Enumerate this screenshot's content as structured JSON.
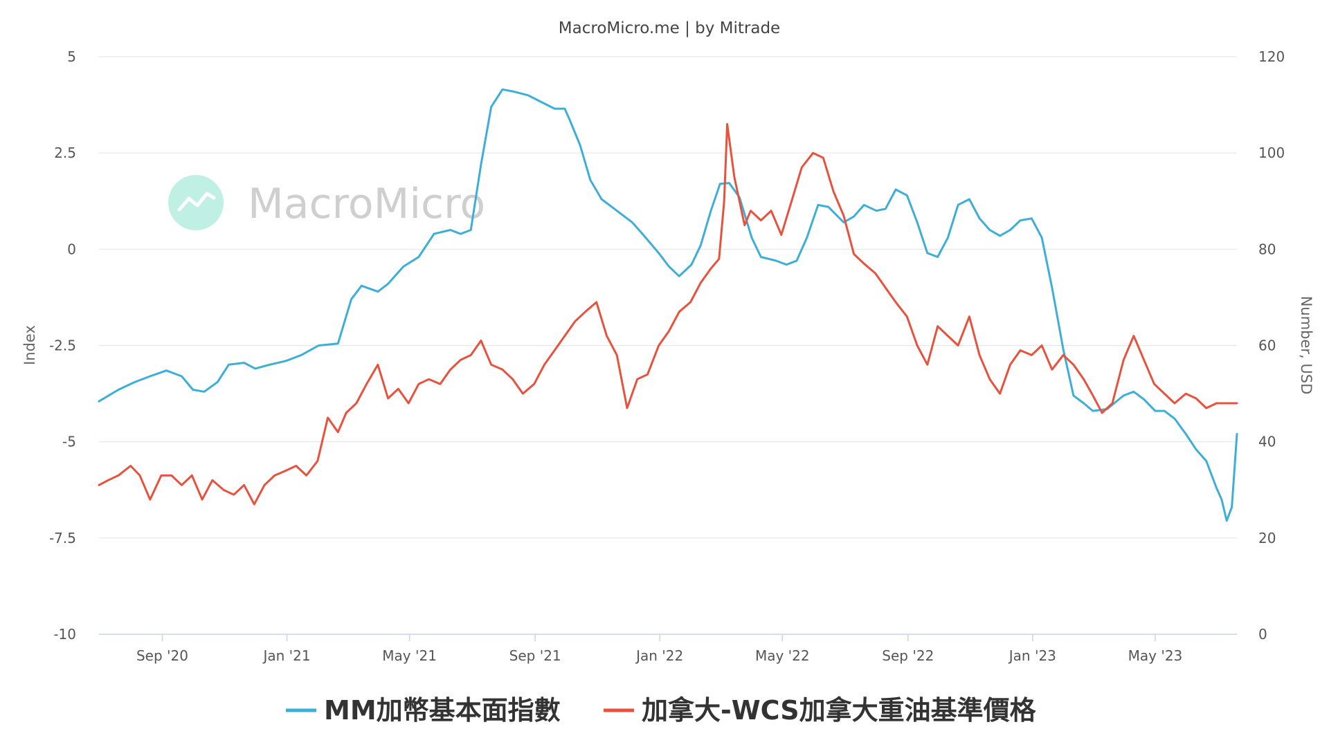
{
  "header": {
    "source": "MacroMicro.me | by Mitrade"
  },
  "watermark": {
    "text": "MacroMicro",
    "logo": "chart-trend-icon",
    "logo_color": "#bff0e3"
  },
  "colors": {
    "mm_index": "#3daed8",
    "wcs": "#e8513c",
    "grid": "#e6e6e6",
    "axis": "#c8d3e6"
  },
  "chart_data": {
    "type": "line",
    "title": "MacroMicro.me | by Mitrade",
    "x_range": [
      "2020-07-01",
      "2023-07-20"
    ],
    "x_ticks": [
      {
        "date": "2020-09-01",
        "label": "Sep '20"
      },
      {
        "date": "2021-01-01",
        "label": "Jan '21"
      },
      {
        "date": "2021-05-01",
        "label": "May '21"
      },
      {
        "date": "2021-09-01",
        "label": "Sep '21"
      },
      {
        "date": "2022-01-01",
        "label": "Jan '22"
      },
      {
        "date": "2022-05-01",
        "label": "May '22"
      },
      {
        "date": "2022-09-01",
        "label": "Sep '22"
      },
      {
        "date": "2023-01-01",
        "label": "Jan '23"
      },
      {
        "date": "2023-05-01",
        "label": "May '23"
      }
    ],
    "y_left": {
      "label": "Index",
      "range": [
        -10,
        5
      ],
      "ticks": [
        "5",
        "2.5",
        "0",
        "-2.5",
        "-5",
        "-7.5",
        "-10"
      ],
      "tick_values": [
        5,
        2.5,
        0,
        -2.5,
        -5,
        -7.5,
        -10
      ]
    },
    "y_right": {
      "label": "Number, USD",
      "range": [
        0,
        120
      ],
      "ticks": [
        "120",
        "100",
        "80",
        "60",
        "40",
        "20",
        "0"
      ],
      "tick_values": [
        120,
        100,
        80,
        60,
        40,
        20,
        0
      ]
    },
    "grid": true,
    "legend": "bottom",
    "series": [
      {
        "name": "MM加幣基本面指數",
        "axis": "left",
        "color": "#3daed8",
        "points": [
          [
            "2020-07-01",
            -3.95
          ],
          [
            "2020-07-20",
            -3.65
          ],
          [
            "2020-08-05",
            -3.45
          ],
          [
            "2020-08-20",
            -3.3
          ],
          [
            "2020-09-05",
            -3.15
          ],
          [
            "2020-09-20",
            -3.3
          ],
          [
            "2020-10-01",
            -3.65
          ],
          [
            "2020-10-12",
            -3.7
          ],
          [
            "2020-10-25",
            -3.45
          ],
          [
            "2020-11-05",
            -3.0
          ],
          [
            "2020-11-20",
            -2.95
          ],
          [
            "2020-12-01",
            -3.1
          ],
          [
            "2020-12-15",
            -3.0
          ],
          [
            "2020-12-31",
            -2.9
          ],
          [
            "2021-01-15",
            -2.75
          ],
          [
            "2021-02-01",
            -2.5
          ],
          [
            "2021-02-20",
            -2.45
          ],
          [
            "2021-03-05",
            -1.3
          ],
          [
            "2021-03-15",
            -0.95
          ],
          [
            "2021-03-31",
            -1.1
          ],
          [
            "2021-04-10",
            -0.9
          ],
          [
            "2021-04-25",
            -0.45
          ],
          [
            "2021-05-10",
            -0.2
          ],
          [
            "2021-05-25",
            0.4
          ],
          [
            "2021-06-10",
            0.5
          ],
          [
            "2021-06-20",
            0.4
          ],
          [
            "2021-06-30",
            0.5
          ],
          [
            "2021-07-10",
            2.2
          ],
          [
            "2021-07-20",
            3.7
          ],
          [
            "2021-07-31",
            4.15
          ],
          [
            "2021-08-10",
            4.1
          ],
          [
            "2021-08-25",
            4.0
          ],
          [
            "2021-09-05",
            3.85
          ],
          [
            "2021-09-20",
            3.65
          ],
          [
            "2021-09-30",
            3.65
          ],
          [
            "2021-10-05",
            3.35
          ],
          [
            "2021-10-15",
            2.7
          ],
          [
            "2021-10-25",
            1.8
          ],
          [
            "2021-11-05",
            1.3
          ],
          [
            "2021-11-20",
            1.0
          ],
          [
            "2021-12-05",
            0.7
          ],
          [
            "2021-12-15",
            0.4
          ],
          [
            "2021-12-31",
            -0.1
          ],
          [
            "2022-01-10",
            -0.45
          ],
          [
            "2022-01-20",
            -0.7
          ],
          [
            "2022-02-01",
            -0.4
          ],
          [
            "2022-02-10",
            0.1
          ],
          [
            "2022-02-20",
            1.0
          ],
          [
            "2022-03-01",
            1.7
          ],
          [
            "2022-03-10",
            1.72
          ],
          [
            "2022-03-20",
            1.35
          ],
          [
            "2022-04-01",
            0.3
          ],
          [
            "2022-04-10",
            -0.2
          ],
          [
            "2022-04-25",
            -0.3
          ],
          [
            "2022-05-05",
            -0.4
          ],
          [
            "2022-05-15",
            -0.3
          ],
          [
            "2022-05-25",
            0.3
          ],
          [
            "2022-06-05",
            1.15
          ],
          [
            "2022-06-15",
            1.1
          ],
          [
            "2022-06-30",
            0.7
          ],
          [
            "2022-07-10",
            0.85
          ],
          [
            "2022-07-20",
            1.15
          ],
          [
            "2022-08-01",
            1.0
          ],
          [
            "2022-08-10",
            1.05
          ],
          [
            "2022-08-20",
            1.55
          ],
          [
            "2022-08-31",
            1.4
          ],
          [
            "2022-09-10",
            0.7
          ],
          [
            "2022-09-20",
            -0.1
          ],
          [
            "2022-09-30",
            -0.2
          ],
          [
            "2022-10-10",
            0.3
          ],
          [
            "2022-10-20",
            1.15
          ],
          [
            "2022-10-31",
            1.3
          ],
          [
            "2022-11-10",
            0.8
          ],
          [
            "2022-11-20",
            0.5
          ],
          [
            "2022-11-30",
            0.35
          ],
          [
            "2022-12-10",
            0.5
          ],
          [
            "2022-12-20",
            0.75
          ],
          [
            "2022-12-31",
            0.8
          ],
          [
            "2023-01-10",
            0.3
          ],
          [
            "2023-01-20",
            -1.0
          ],
          [
            "2023-01-31",
            -2.6
          ],
          [
            "2023-02-10",
            -3.8
          ],
          [
            "2023-02-20",
            -4.0
          ],
          [
            "2023-03-01",
            -4.2
          ],
          [
            "2023-03-15",
            -4.15
          ],
          [
            "2023-03-31",
            -3.8
          ],
          [
            "2023-04-10",
            -3.7
          ],
          [
            "2023-04-20",
            -3.9
          ],
          [
            "2023-05-01",
            -4.2
          ],
          [
            "2023-05-10",
            -4.2
          ],
          [
            "2023-05-20",
            -4.4
          ],
          [
            "2023-05-31",
            -4.8
          ],
          [
            "2023-06-10",
            -5.2
          ],
          [
            "2023-06-20",
            -5.5
          ],
          [
            "2023-06-30",
            -6.2
          ],
          [
            "2023-07-05",
            -6.5
          ],
          [
            "2023-07-10",
            -7.05
          ],
          [
            "2023-07-15",
            -6.7
          ],
          [
            "2023-07-20",
            -4.8
          ]
        ]
      },
      {
        "name": "加拿大-WCS加拿大重油基準價格",
        "axis": "right",
        "color": "#e8513c",
        "points": [
          [
            "2020-07-01",
            31
          ],
          [
            "2020-07-10",
            32
          ],
          [
            "2020-07-20",
            33
          ],
          [
            "2020-08-01",
            35
          ],
          [
            "2020-08-10",
            33
          ],
          [
            "2020-08-20",
            28
          ],
          [
            "2020-08-31",
            33
          ],
          [
            "2020-09-10",
            33
          ],
          [
            "2020-09-20",
            31
          ],
          [
            "2020-09-30",
            33
          ],
          [
            "2020-10-10",
            28
          ],
          [
            "2020-10-20",
            32
          ],
          [
            "2020-10-31",
            30
          ],
          [
            "2020-11-10",
            29
          ],
          [
            "2020-11-20",
            31
          ],
          [
            "2020-11-30",
            27
          ],
          [
            "2020-12-10",
            31
          ],
          [
            "2020-12-20",
            33
          ],
          [
            "2020-12-31",
            34
          ],
          [
            "2021-01-10",
            35
          ],
          [
            "2021-01-20",
            33
          ],
          [
            "2021-01-31",
            36
          ],
          [
            "2021-02-10",
            45
          ],
          [
            "2021-02-20",
            42
          ],
          [
            "2021-02-28",
            46
          ],
          [
            "2021-03-10",
            48
          ],
          [
            "2021-03-20",
            52
          ],
          [
            "2021-03-31",
            56
          ],
          [
            "2021-04-10",
            49
          ],
          [
            "2021-04-20",
            51
          ],
          [
            "2021-04-30",
            48
          ],
          [
            "2021-05-10",
            52
          ],
          [
            "2021-05-20",
            53
          ],
          [
            "2021-05-31",
            52
          ],
          [
            "2021-06-10",
            55
          ],
          [
            "2021-06-20",
            57
          ],
          [
            "2021-06-30",
            58
          ],
          [
            "2021-07-10",
            61
          ],
          [
            "2021-07-20",
            56
          ],
          [
            "2021-07-31",
            55
          ],
          [
            "2021-08-10",
            53
          ],
          [
            "2021-08-20",
            50
          ],
          [
            "2021-08-31",
            52
          ],
          [
            "2021-09-10",
            56
          ],
          [
            "2021-09-20",
            59
          ],
          [
            "2021-09-30",
            62
          ],
          [
            "2021-10-10",
            65
          ],
          [
            "2021-10-20",
            67
          ],
          [
            "2021-10-31",
            69
          ],
          [
            "2021-11-10",
            62
          ],
          [
            "2021-11-20",
            58
          ],
          [
            "2021-11-30",
            47
          ],
          [
            "2021-12-10",
            53
          ],
          [
            "2021-12-20",
            54
          ],
          [
            "2021-12-31",
            60
          ],
          [
            "2022-01-10",
            63
          ],
          [
            "2022-01-20",
            67
          ],
          [
            "2022-01-31",
            69
          ],
          [
            "2022-02-10",
            73
          ],
          [
            "2022-02-20",
            76
          ],
          [
            "2022-02-28",
            78
          ],
          [
            "2022-03-05",
            90
          ],
          [
            "2022-03-08",
            106
          ],
          [
            "2022-03-15",
            95
          ],
          [
            "2022-03-25",
            85
          ],
          [
            "2022-03-31",
            88
          ],
          [
            "2022-04-10",
            86
          ],
          [
            "2022-04-20",
            88
          ],
          [
            "2022-04-30",
            83
          ],
          [
            "2022-05-10",
            90
          ],
          [
            "2022-05-20",
            97
          ],
          [
            "2022-05-31",
            100
          ],
          [
            "2022-06-10",
            99
          ],
          [
            "2022-06-20",
            92
          ],
          [
            "2022-06-30",
            87
          ],
          [
            "2022-07-10",
            79
          ],
          [
            "2022-07-20",
            77
          ],
          [
            "2022-07-31",
            75
          ],
          [
            "2022-08-10",
            72
          ],
          [
            "2022-08-20",
            69
          ],
          [
            "2022-08-31",
            66
          ],
          [
            "2022-09-10",
            60
          ],
          [
            "2022-09-20",
            56
          ],
          [
            "2022-09-30",
            64
          ],
          [
            "2022-10-10",
            62
          ],
          [
            "2022-10-20",
            60
          ],
          [
            "2022-10-31",
            66
          ],
          [
            "2022-11-10",
            58
          ],
          [
            "2022-11-20",
            53
          ],
          [
            "2022-11-30",
            50
          ],
          [
            "2022-12-10",
            56
          ],
          [
            "2022-12-20",
            59
          ],
          [
            "2022-12-31",
            58
          ],
          [
            "2023-01-10",
            60
          ],
          [
            "2023-01-20",
            55
          ],
          [
            "2023-01-31",
            58
          ],
          [
            "2023-02-10",
            56
          ],
          [
            "2023-02-20",
            53
          ],
          [
            "2023-02-28",
            50
          ],
          [
            "2023-03-10",
            46
          ],
          [
            "2023-03-20",
            48
          ],
          [
            "2023-03-31",
            57
          ],
          [
            "2023-04-10",
            62
          ],
          [
            "2023-04-20",
            57
          ],
          [
            "2023-04-30",
            52
          ],
          [
            "2023-05-10",
            50
          ],
          [
            "2023-05-20",
            48
          ],
          [
            "2023-05-31",
            50
          ],
          [
            "2023-06-10",
            49
          ],
          [
            "2023-06-20",
            47
          ],
          [
            "2023-06-30",
            48
          ],
          [
            "2023-07-10",
            48
          ],
          [
            "2023-07-20",
            48
          ]
        ]
      }
    ]
  },
  "legend": {
    "items": [
      {
        "label": "MM加幣基本面指數",
        "color": "#3daed8"
      },
      {
        "label": "加拿大-WCS加拿大重油基準價格",
        "color": "#e8513c"
      }
    ]
  }
}
